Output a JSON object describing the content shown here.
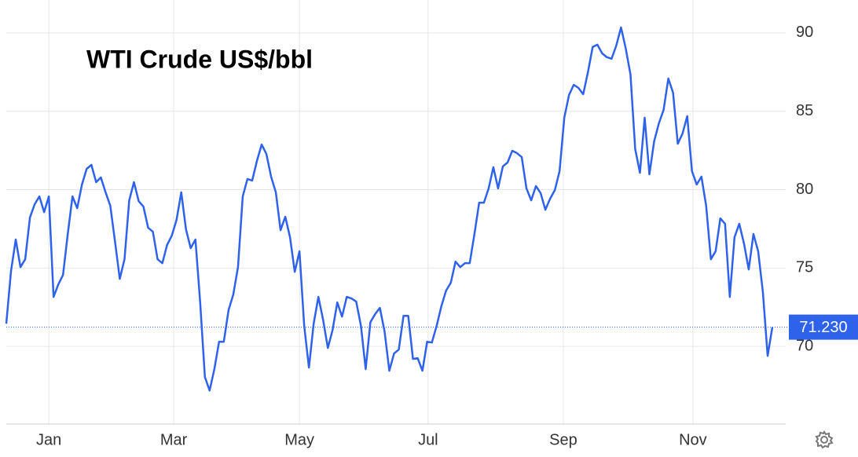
{
  "chart_data": {
    "type": "line",
    "title": "WTI Crude US$/bbl",
    "series": [
      {
        "color": "#2f62ea",
        "values": [
          71.45,
          74.81,
          76.82,
          75.06,
          75.56,
          78.22,
          79.07,
          79.57,
          78.57,
          79.57,
          73.16,
          73.96,
          74.56,
          77.17,
          79.57,
          78.82,
          80.33,
          81.33,
          81.58,
          80.48,
          80.78,
          79.83,
          78.97,
          76.67,
          74.31,
          75.56,
          79.32,
          80.48,
          79.27,
          78.92,
          77.57,
          77.32,
          75.56,
          75.31,
          76.47,
          77.07,
          78.07,
          79.83,
          77.47,
          76.27,
          76.82,
          72.81,
          68.05,
          67.19,
          68.55,
          70.3,
          70.3,
          72.31,
          73.31,
          75.06,
          79.57,
          80.68,
          80.58,
          81.83,
          82.88,
          82.28,
          80.83,
          79.83,
          77.42,
          78.27,
          76.97,
          74.76,
          76.07,
          71.31,
          68.65,
          71.45,
          73.16,
          71.7,
          69.9,
          71.05,
          72.81,
          71.9,
          73.16,
          73.06,
          72.86,
          71.31,
          68.55,
          71.55,
          72.06,
          72.46,
          70.95,
          68.45,
          69.55,
          69.8,
          71.95,
          71.95,
          69.2,
          69.25,
          68.45,
          70.3,
          70.25,
          71.31,
          72.56,
          73.56,
          74.06,
          75.41,
          75.06,
          75.31,
          75.31,
          77.17,
          79.17,
          79.17,
          80.08,
          81.43,
          80.08,
          81.48,
          81.73,
          82.48,
          82.33,
          82.08,
          80.08,
          79.32,
          80.23,
          79.78,
          78.72,
          79.42,
          79.97,
          81.18,
          84.59,
          86.04,
          86.69,
          86.49,
          86.09,
          87.49,
          89.1,
          89.25,
          88.7,
          88.45,
          88.35,
          89.2,
          90.35,
          89.0,
          87.34,
          82.58,
          81.08,
          84.59,
          80.98,
          83.08,
          84.23,
          85.09,
          87.09,
          86.19,
          82.93,
          83.58,
          84.69,
          81.18,
          80.33,
          80.83,
          78.97,
          75.56,
          76.07,
          78.17,
          77.82,
          73.16,
          76.97,
          77.82,
          76.57,
          74.91,
          77.17,
          76.07,
          73.46,
          69.4,
          71.23
        ]
      }
    ],
    "last_price": {
      "value": 71.23,
      "label": "71.230"
    },
    "xlim": [
      0,
      162
    ],
    "xticks": [
      {
        "value": 9,
        "label": "Jan"
      },
      {
        "value": 35.4,
        "label": "Mar"
      },
      {
        "value": 62,
        "label": "May"
      },
      {
        "value": 89.2,
        "label": "Jul"
      },
      {
        "value": 117.8,
        "label": "Sep"
      },
      {
        "value": 145.2,
        "label": "Nov"
      }
    ],
    "ylim": [
      65.05,
      92.1
    ],
    "yticks": [
      70,
      75,
      80,
      85,
      90
    ],
    "grid": true
  }
}
